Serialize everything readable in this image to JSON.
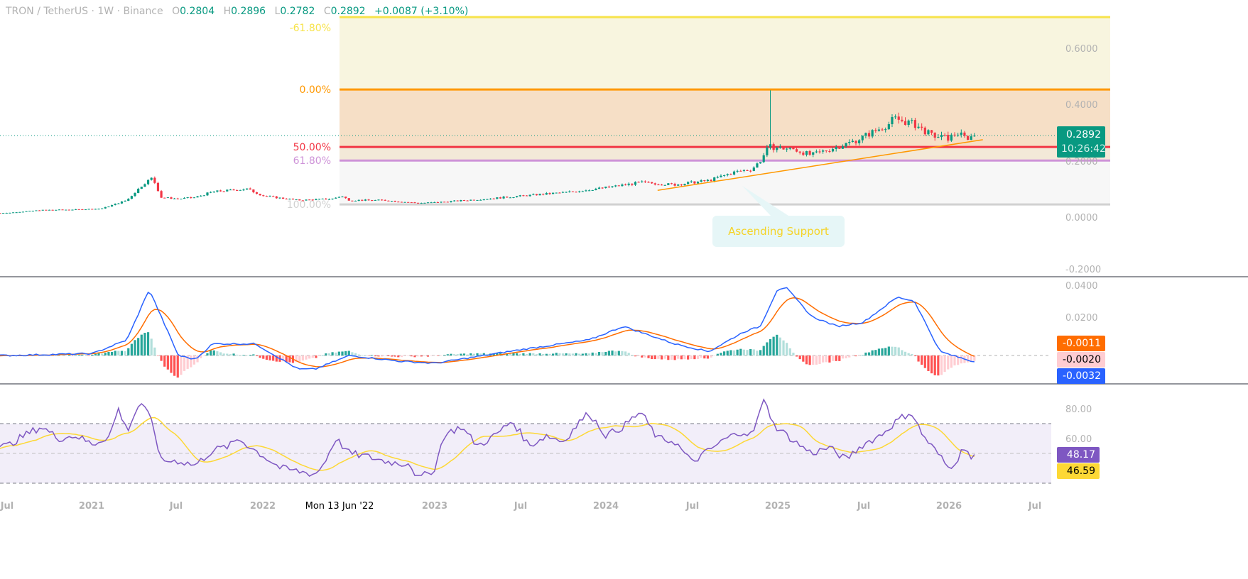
{
  "header": {
    "symbol": "TRON / TetherUS · 1W · Binance",
    "open_label": "O",
    "open": "0.2804",
    "high_label": "H",
    "high": "0.2896",
    "low_label": "L",
    "low": "0.2782",
    "close_label": "C",
    "close": "0.2892",
    "change": "+0.0087 (+3.10%)"
  },
  "price_label": {
    "value": "0.2892",
    "countdown": "10:26:42"
  },
  "macd_labels": {
    "signal": "-0.0011",
    "histogram": "-0.0020",
    "macd": "-0.0032"
  },
  "rsi_labels": {
    "rsi": "48.17",
    "rsi_ma": "46.59"
  },
  "annotation": "Ascending Support",
  "crosshair_date": "Mon 13 Jun '22",
  "colors": {
    "up": "#089981",
    "down": "#f23645",
    "macd": "#2962ff",
    "signal": "#ff6d00",
    "rsi": "#7e57c2",
    "rsi_ma": "#fdd835"
  },
  "chart_data": [
    {
      "type": "candlestick",
      "title": "TRON / TetherUS 1W",
      "price_axis_ticks": [
        "0.6000",
        "0.4000",
        "0.2000",
        "0.0000",
        "-0.2000"
      ],
      "ylim": [
        -0.2,
        0.7
      ],
      "time_axis_ticks": [
        "Jul",
        "2021",
        "Jul",
        "2022",
        "2023",
        "Jul",
        "2024",
        "Jul",
        "2025",
        "Jul",
        "2026",
        "Jul"
      ],
      "close_anchors": [
        [
          2020.5,
          0.015
        ],
        [
          2020.7,
          0.025
        ],
        [
          2020.9,
          0.027
        ],
        [
          2021.05,
          0.03
        ],
        [
          2021.2,
          0.06
        ],
        [
          2021.3,
          0.12
        ],
        [
          2021.35,
          0.14
        ],
        [
          2021.4,
          0.07
        ],
        [
          2021.5,
          0.065
        ],
        [
          2021.6,
          0.07
        ],
        [
          2021.7,
          0.09
        ],
        [
          2021.8,
          0.095
        ],
        [
          2021.9,
          0.1
        ],
        [
          2022.0,
          0.075
        ],
        [
          2022.2,
          0.06
        ],
        [
          2022.4,
          0.065
        ],
        [
          2022.45,
          0.075
        ],
        [
          2022.5,
          0.06
        ],
        [
          2022.7,
          0.06
        ],
        [
          2022.9,
          0.05
        ],
        [
          2023.0,
          0.052
        ],
        [
          2023.3,
          0.065
        ],
        [
          2023.5,
          0.075
        ],
        [
          2023.8,
          0.09
        ],
        [
          2024.0,
          0.105
        ],
        [
          2024.2,
          0.123
        ],
        [
          2024.4,
          0.115
        ],
        [
          2024.6,
          0.13
        ],
        [
          2024.75,
          0.16
        ],
        [
          2024.85,
          0.17
        ],
        [
          2024.9,
          0.2
        ],
        [
          2024.95,
          0.25
        ],
        [
          2025.1,
          0.24
        ],
        [
          2025.2,
          0.22
        ],
        [
          2025.3,
          0.24
        ],
        [
          2025.45,
          0.27
        ],
        [
          2025.55,
          0.3
        ],
        [
          2025.65,
          0.33
        ],
        [
          2025.68,
          0.35
        ],
        [
          2025.8,
          0.33
        ],
        [
          2025.9,
          0.29
        ],
        [
          2026.0,
          0.28
        ],
        [
          2026.05,
          0.3
        ],
        [
          2026.1,
          0.28
        ],
        [
          2026.15,
          0.2892
        ]
      ],
      "spike": {
        "time": 2024.95,
        "high": 0.45
      },
      "fibonacci": [
        {
          "label": "-61.80%",
          "price": 0.71,
          "color": "#f7e34a"
        },
        {
          "label": "0.00%",
          "price": 0.453,
          "color": "#ff9800"
        },
        {
          "label": "50.00%",
          "price": 0.249,
          "color": "#f23645"
        },
        {
          "label": "61.80%",
          "price": 0.201,
          "color": "#ce93d8"
        },
        {
          "label": "100.00%",
          "price": 0.045,
          "color": "#d1d1d1"
        }
      ],
      "trendline": {
        "from": [
          2024.3,
          0.095
        ],
        "to": [
          2026.2,
          0.275
        ],
        "label": "Ascending Support"
      }
    },
    {
      "type": "line",
      "title": "MACD",
      "axis_ticks": [
        "0.0400",
        "0.0200"
      ],
      "macd_anchors": [
        [
          2020.5,
          0.0
        ],
        [
          2021.0,
          0.001
        ],
        [
          2021.2,
          0.008
        ],
        [
          2021.33,
          0.034
        ],
        [
          2021.5,
          0.0
        ],
        [
          2021.6,
          -0.002
        ],
        [
          2021.7,
          0.006
        ],
        [
          2021.95,
          0.006
        ],
        [
          2022.2,
          -0.007
        ],
        [
          2022.3,
          -0.007
        ],
        [
          2022.5,
          0.0
        ],
        [
          2022.8,
          -0.003
        ],
        [
          2023.0,
          -0.004
        ],
        [
          2023.5,
          0.003
        ],
        [
          2023.9,
          0.008
        ],
        [
          2024.1,
          0.015
        ],
        [
          2024.4,
          0.006
        ],
        [
          2024.6,
          0.002
        ],
        [
          2024.8,
          0.012
        ],
        [
          2024.9,
          0.015
        ],
        [
          2025.0,
          0.034
        ],
        [
          2025.05,
          0.035
        ],
        [
          2025.2,
          0.02
        ],
        [
          2025.35,
          0.015
        ],
        [
          2025.5,
          0.017
        ],
        [
          2025.7,
          0.03
        ],
        [
          2025.8,
          0.028
        ],
        [
          2025.95,
          0.002
        ],
        [
          2026.1,
          -0.002
        ],
        [
          2026.15,
          -0.0032
        ]
      ]
    },
    {
      "type": "line",
      "title": "RSI",
      "axis_ticks": [
        "80.00",
        "60.00"
      ],
      "bands": [
        70,
        50,
        30
      ],
      "rsi_anchors": [
        [
          2020.5,
          55
        ],
        [
          2020.6,
          62
        ],
        [
          2020.7,
          68
        ],
        [
          2020.8,
          60
        ],
        [
          2020.9,
          62
        ],
        [
          2021.0,
          56
        ],
        [
          2021.1,
          62
        ],
        [
          2021.15,
          80
        ],
        [
          2021.2,
          65
        ],
        [
          2021.28,
          85
        ],
        [
          2021.35,
          70
        ],
        [
          2021.4,
          45
        ],
        [
          2021.5,
          45
        ],
        [
          2021.6,
          42
        ],
        [
          2021.7,
          52
        ],
        [
          2021.8,
          55
        ],
        [
          2021.85,
          60
        ],
        [
          2021.95,
          52
        ],
        [
          2022.0,
          48
        ],
        [
          2022.1,
          40
        ],
        [
          2022.2,
          38
        ],
        [
          2022.3,
          36
        ],
        [
          2022.35,
          43
        ],
        [
          2022.42,
          60
        ],
        [
          2022.5,
          50
        ],
        [
          2022.6,
          48
        ],
        [
          2022.7,
          45
        ],
        [
          2022.8,
          43
        ],
        [
          2022.85,
          44
        ],
        [
          2022.9,
          33
        ],
        [
          2022.95,
          36
        ],
        [
          2023.0,
          40
        ],
        [
          2023.05,
          62
        ],
        [
          2023.15,
          68
        ],
        [
          2023.25,
          55
        ],
        [
          2023.35,
          62
        ],
        [
          2023.45,
          72
        ],
        [
          2023.55,
          55
        ],
        [
          2023.65,
          62
        ],
        [
          2023.75,
          58
        ],
        [
          2023.85,
          72
        ],
        [
          2023.9,
          77
        ],
        [
          2024.0,
          62
        ],
        [
          2024.1,
          68
        ],
        [
          2024.2,
          78
        ],
        [
          2024.3,
          60
        ],
        [
          2024.4,
          58
        ],
        [
          2024.5,
          44
        ],
        [
          2024.6,
          52
        ],
        [
          2024.7,
          60
        ],
        [
          2024.8,
          65
        ],
        [
          2024.85,
          62
        ],
        [
          2024.93,
          88
        ],
        [
          2024.97,
          70
        ],
        [
          2025.1,
          58
        ],
        [
          2025.2,
          50
        ],
        [
          2025.3,
          54
        ],
        [
          2025.4,
          46
        ],
        [
          2025.5,
          56
        ],
        [
          2025.6,
          62
        ],
        [
          2025.7,
          72
        ],
        [
          2025.78,
          78
        ],
        [
          2025.85,
          62
        ],
        [
          2025.95,
          48
        ],
        [
          2026.0,
          40
        ],
        [
          2026.05,
          46
        ],
        [
          2026.1,
          56
        ],
        [
          2026.13,
          46
        ],
        [
          2026.15,
          48.17
        ]
      ]
    }
  ]
}
